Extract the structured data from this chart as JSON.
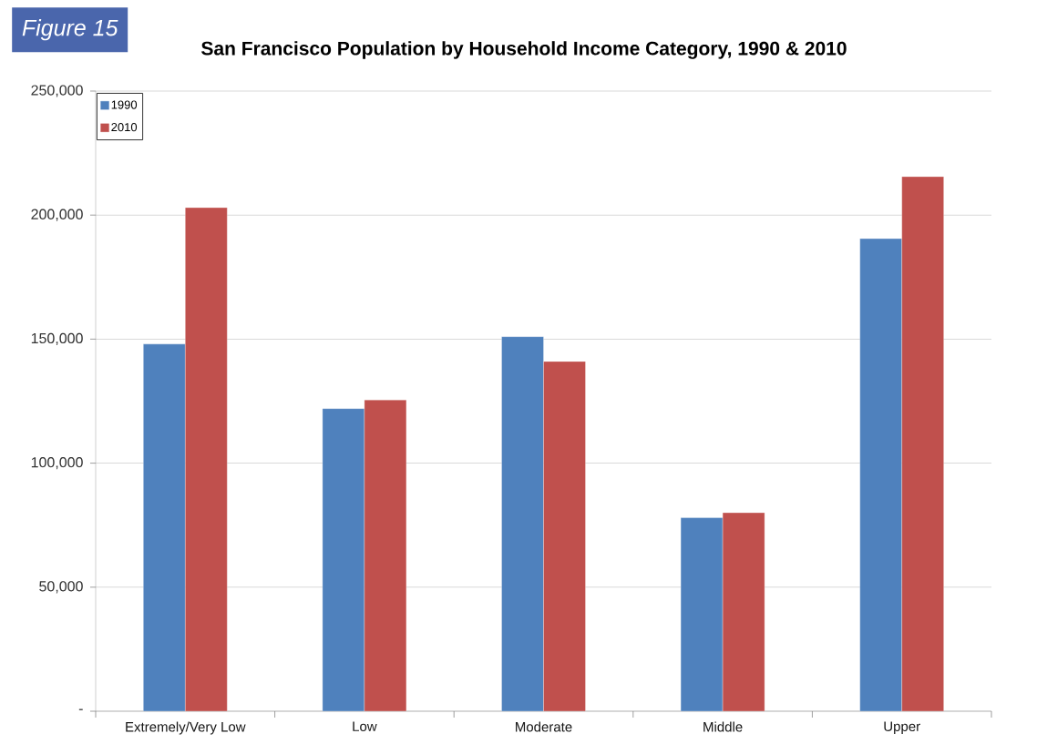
{
  "chart_data": {
    "type": "bar",
    "title": "San Francisco Population by Household Income Category, 1990 & 2010",
    "categories": [
      "Extremely/Very Low",
      "Low",
      "Moderate",
      "Middle",
      "Upper"
    ],
    "series": [
      {
        "name": "1990",
        "color": "#4f81bd",
        "values": [
          148000,
          122000,
          151000,
          78000,
          190500
        ]
      },
      {
        "name": "2010",
        "color": "#c0504d",
        "values": [
          203000,
          125500,
          141000,
          80000,
          215500
        ]
      }
    ],
    "ylim": [
      0,
      250000
    ],
    "yticks": [
      {
        "value": 0,
        "label": "-"
      },
      {
        "value": 50000,
        "label": "50,000"
      },
      {
        "value": 100000,
        "label": "100,000"
      },
      {
        "value": 150000,
        "label": "150,000"
      },
      {
        "value": 200000,
        "label": "200,000"
      },
      {
        "value": 250000,
        "label": "250,000"
      }
    ],
    "grid": "y",
    "legend": "top left",
    "annotations": [
      "Figure 15"
    ]
  }
}
